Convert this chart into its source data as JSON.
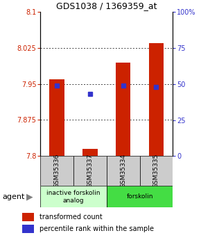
{
  "title": "GDS1038 / 1369359_at",
  "samples": [
    "GSM35336",
    "GSM35337",
    "GSM35334",
    "GSM35335"
  ],
  "bar_bottom": 7.8,
  "bar_tops": [
    7.96,
    7.815,
    7.995,
    8.035
  ],
  "percentile_values": [
    49,
    43,
    49,
    48
  ],
  "ylim_left": [
    7.8,
    8.1
  ],
  "ylim_right": [
    0,
    100
  ],
  "yticks_left": [
    7.8,
    7.875,
    7.95,
    8.025,
    8.1
  ],
  "yticks_left_labels": [
    "7.8",
    "7.875",
    "7.95",
    "8.025",
    "8.1"
  ],
  "yticks_right": [
    0,
    25,
    50,
    75,
    100
  ],
  "yticks_right_labels": [
    "0",
    "25",
    "50",
    "75",
    "100%"
  ],
  "bar_color": "#cc2200",
  "dot_color": "#3333cc",
  "groups": [
    {
      "label": "inactive forskolin\nanalog",
      "indices": [
        0,
        1
      ],
      "color": "#ccffcc"
    },
    {
      "label": "forskolin",
      "indices": [
        2,
        3
      ],
      "color": "#44dd44"
    }
  ],
  "legend_items": [
    {
      "color": "#cc2200",
      "label": "transformed count"
    },
    {
      "color": "#3333cc",
      "label": "percentile rank within the sample"
    }
  ],
  "agent_label": "agent",
  "bar_width": 0.45
}
